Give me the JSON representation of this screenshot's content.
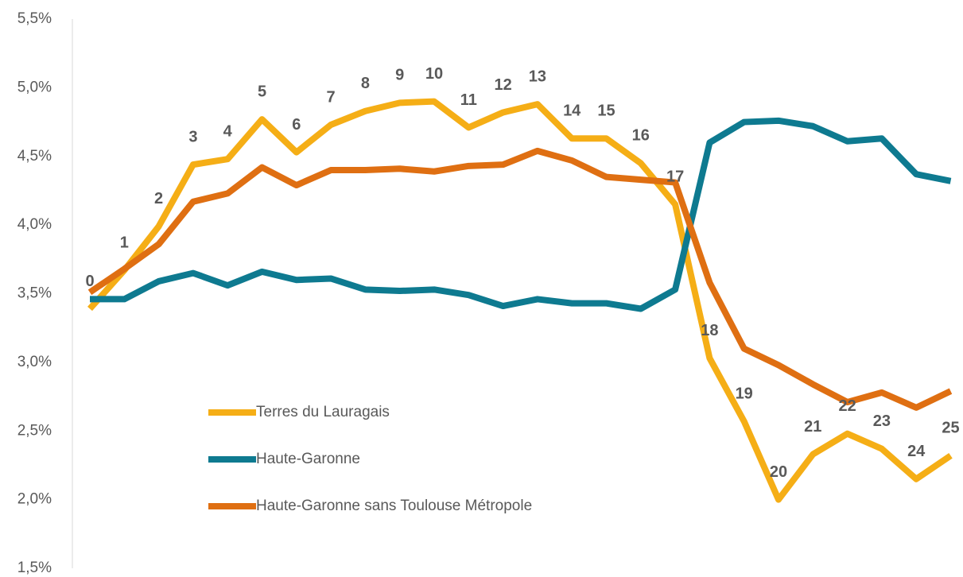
{
  "chart_data": {
    "type": "line",
    "categories": [
      "0",
      "1",
      "2",
      "3",
      "4",
      "5",
      "6",
      "7",
      "8",
      "9",
      "10",
      "11",
      "12",
      "13",
      "14",
      "15",
      "16",
      "17",
      "18",
      "19",
      "20",
      "21",
      "22",
      "23",
      "24",
      "25"
    ],
    "series": [
      {
        "name": "Terres du Lauragais",
        "color": "#f5ae16",
        "values": [
          3.39,
          3.67,
          3.99,
          4.44,
          4.48,
          4.77,
          4.53,
          4.73,
          4.83,
          4.89,
          4.9,
          4.71,
          4.82,
          4.88,
          4.63,
          4.63,
          4.45,
          4.15,
          3.03,
          2.57,
          2.0,
          2.33,
          2.48,
          2.37,
          2.15,
          2.32
        ]
      },
      {
        "name": "Haute-Garonne",
        "color": "#0e7a90",
        "values": [
          3.46,
          3.46,
          3.59,
          3.65,
          3.56,
          3.66,
          3.6,
          3.61,
          3.53,
          3.52,
          3.53,
          3.49,
          3.41,
          3.46,
          3.43,
          3.43,
          3.39,
          3.53,
          4.6,
          4.75,
          4.76,
          4.72,
          4.61,
          4.63,
          4.37,
          4.32
        ]
      },
      {
        "name": "Haute-Garonne sans Toulouse Métropole",
        "color": "#df6f12",
        "values": [
          3.51,
          3.68,
          3.86,
          4.17,
          4.23,
          4.42,
          4.29,
          4.4,
          4.4,
          4.41,
          4.39,
          4.43,
          4.44,
          4.54,
          4.47,
          4.35,
          4.33,
          4.31,
          3.58,
          3.1,
          2.98,
          2.84,
          2.71,
          2.78,
          2.67,
          2.79
        ]
      }
    ],
    "ylim": [
      1.5,
      5.5
    ],
    "yticks": [
      {
        "value": 1.5,
        "label": "1,5%"
      },
      {
        "value": 2.0,
        "label": "2,0%"
      },
      {
        "value": 2.5,
        "label": "2,5%"
      },
      {
        "value": 3.0,
        "label": "3,0%"
      },
      {
        "value": 3.5,
        "label": "3,5%"
      },
      {
        "value": 4.0,
        "label": "4,0%"
      },
      {
        "value": 4.5,
        "label": "4,5%"
      },
      {
        "value": 5.0,
        "label": "5,0%"
      },
      {
        "value": 5.5,
        "label": "5,5%"
      }
    ],
    "grid": false,
    "legend": "center-left"
  }
}
